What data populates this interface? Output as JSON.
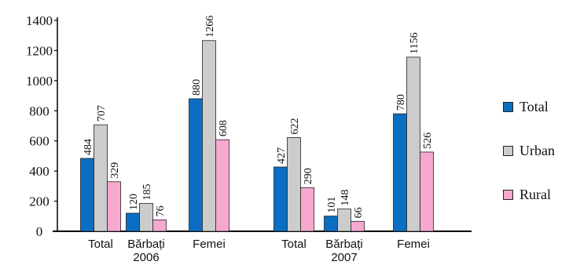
{
  "chart_data": {
    "type": "bar",
    "categories": [
      [
        "Total",
        ""
      ],
      [
        "Bărbați",
        "2006"
      ],
      [
        "Femei",
        ""
      ],
      [
        "Total",
        ""
      ],
      [
        "Bărbați",
        "2007"
      ],
      [
        "Femei",
        ""
      ]
    ],
    "series": [
      {
        "name": "Total",
        "color": "#0a6fc2",
        "values": [
          484,
          120,
          880,
          427,
          101,
          780
        ]
      },
      {
        "name": "Urban",
        "color": "#cccccc",
        "values": [
          707,
          185,
          1266,
          622,
          148,
          1156
        ]
      },
      {
        "name": "Rural",
        "color": "#f6a8cf",
        "values": [
          329,
          76,
          608,
          290,
          66,
          526
        ]
      }
    ],
    "yticks": [
      0,
      200,
      400,
      600,
      800,
      1000,
      1200,
      1400
    ],
    "ylim": [
      0,
      1400
    ],
    "legend_position": "right",
    "grid": false
  }
}
